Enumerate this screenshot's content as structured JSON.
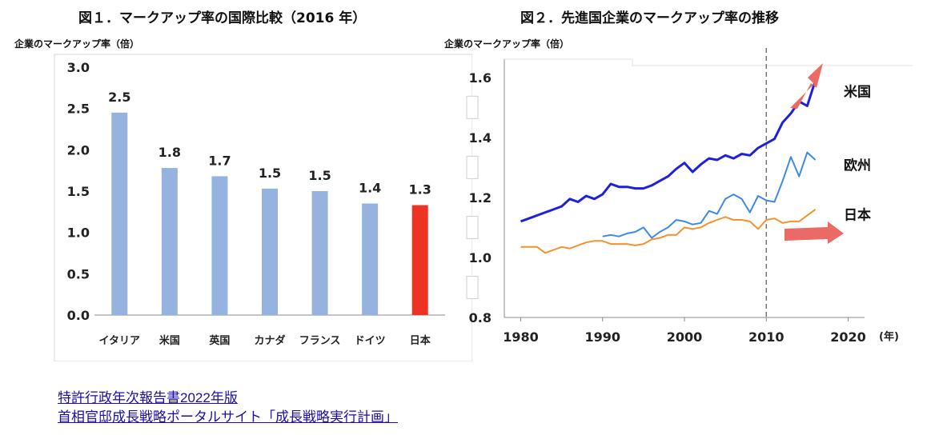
{
  "chart_data": [
    {
      "type": "bar",
      "title": "図１．マークアップ率の国際比較（2016 年）",
      "ylabel": "企業のマークアップ率（倍）",
      "xlabel": "",
      "categories": [
        "イタリア",
        "米国",
        "英国",
        "カナダ",
        "フランス",
        "ドイツ",
        "日本"
      ],
      "values": [
        2.45,
        1.78,
        1.68,
        1.53,
        1.5,
        1.35,
        1.33
      ],
      "data_labels": [
        "2.5",
        "1.8",
        "1.7",
        "1.5",
        "1.5",
        "1.4",
        "1.3"
      ],
      "bar_colors": [
        "#95b3de",
        "#95b3de",
        "#95b3de",
        "#95b3de",
        "#95b3de",
        "#95b3de",
        "#ee3224"
      ],
      "ylim": [
        0,
        3.0
      ],
      "yticks": [
        0,
        0.5,
        1.0,
        1.5,
        2.0,
        2.5,
        3.0
      ],
      "ytick_labels": [
        "0.0",
        "0.5",
        "1.0",
        "1.5",
        "2.0",
        "2.5",
        "3.0"
      ],
      "grid": false,
      "legend": "none"
    },
    {
      "type": "line",
      "title": "図２．先進国企業のマークアップ率の推移",
      "ylabel": "企業のマークアップ率（倍）",
      "xlabel": "(年)",
      "xlim": [
        1978,
        2022
      ],
      "ylim": [
        0.8,
        1.65
      ],
      "xticks": [
        1980,
        1990,
        2000,
        2010,
        2020
      ],
      "xtick_labels": [
        "1980",
        "1990",
        "2000",
        "2010",
        "2020"
      ],
      "yticks": [
        0.8,
        1.0,
        1.2,
        1.4,
        1.6
      ],
      "ytick_labels": [
        "0.8",
        "1.0",
        "1.2",
        "1.4",
        "1.6"
      ],
      "vline_x": 2010,
      "series": [
        {
          "name": "米国",
          "color": "#1f1fdf",
          "x": [
            1980,
            1981,
            1982,
            1983,
            1984,
            1985,
            1986,
            1987,
            1988,
            1989,
            1990,
            1991,
            1992,
            1993,
            1994,
            1995,
            1996,
            1997,
            1998,
            1999,
            2000,
            2001,
            2002,
            2003,
            2004,
            2005,
            2006,
            2007,
            2008,
            2009,
            2010,
            2011,
            2012,
            2013,
            2014,
            2015,
            2016
          ],
          "values": [
            1.12,
            1.13,
            1.14,
            1.15,
            1.16,
            1.17,
            1.195,
            1.185,
            1.205,
            1.195,
            1.21,
            1.245,
            1.235,
            1.235,
            1.23,
            1.23,
            1.24,
            1.255,
            1.27,
            1.295,
            1.315,
            1.285,
            1.31,
            1.33,
            1.325,
            1.34,
            1.33,
            1.345,
            1.34,
            1.365,
            1.38,
            1.395,
            1.45,
            1.48,
            1.52,
            1.505,
            1.59
          ]
        },
        {
          "name": "欧州",
          "color": "#3c8ae6",
          "x": [
            1990,
            1991,
            1992,
            1993,
            1994,
            1995,
            1996,
            1997,
            1998,
            1999,
            2000,
            2001,
            2002,
            2003,
            2004,
            2005,
            2006,
            2007,
            2008,
            2009,
            2010,
            2011,
            2012,
            2013,
            2014,
            2015,
            2016
          ],
          "values": [
            1.07,
            1.075,
            1.07,
            1.08,
            1.085,
            1.1,
            1.065,
            1.085,
            1.1,
            1.125,
            1.12,
            1.11,
            1.115,
            1.155,
            1.145,
            1.195,
            1.21,
            1.195,
            1.15,
            1.205,
            1.19,
            1.185,
            1.255,
            1.335,
            1.27,
            1.35,
            1.325
          ]
        },
        {
          "name": "日本",
          "color": "#f5912f",
          "x": [
            1980,
            1981,
            1982,
            1983,
            1984,
            1985,
            1986,
            1987,
            1988,
            1989,
            1990,
            1991,
            1992,
            1993,
            1994,
            1995,
            1996,
            1997,
            1998,
            1999,
            2000,
            2001,
            2002,
            2003,
            2004,
            2005,
            2006,
            2007,
            2008,
            2009,
            2010,
            2011,
            2012,
            2013,
            2014,
            2015,
            2016
          ],
          "values": [
            1.035,
            1.035,
            1.035,
            1.015,
            1.025,
            1.035,
            1.03,
            1.04,
            1.05,
            1.055,
            1.055,
            1.045,
            1.045,
            1.045,
            1.04,
            1.045,
            1.06,
            1.065,
            1.075,
            1.075,
            1.1,
            1.095,
            1.1,
            1.115,
            1.125,
            1.135,
            1.125,
            1.125,
            1.12,
            1.095,
            1.125,
            1.13,
            1.115,
            1.12,
            1.12,
            1.14,
            1.16
          ]
        }
      ],
      "annotations": [
        "trend arrow up (米国)",
        "trend arrow flat (日本)"
      ]
    }
  ],
  "links": {
    "link1": "特許行政年次報告書2022年版",
    "link2": "首相官邸成長戦略ポータルサイト「成長戦略実行計画」"
  }
}
